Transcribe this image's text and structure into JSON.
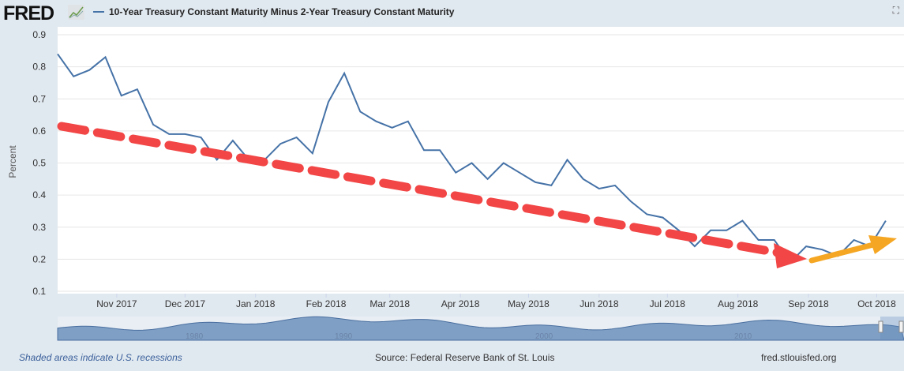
{
  "header": {
    "logo": "FRED",
    "logo_icon": "line-chart-icon",
    "legend_label": "10-Year Treasury Constant Maturity Minus 2-Year Treasury Constant Maturity",
    "expand_icon": "fullscreen-icon"
  },
  "chart_data": {
    "type": "line",
    "title": "",
    "ylabel": "Percent",
    "ylim": [
      0.1,
      0.9
    ],
    "yticks": [
      "0.1",
      "0.2",
      "0.3",
      "0.4",
      "0.5",
      "0.6",
      "0.7",
      "0.8",
      "0.9"
    ],
    "xlim": [
      "2017-10-06",
      "2018-10-13"
    ],
    "xticks": [
      {
        "label": "Nov 2017",
        "date": "2017-11-01"
      },
      {
        "label": "Dec 2017",
        "date": "2017-12-01"
      },
      {
        "label": "Jan 2018",
        "date": "2018-01-01"
      },
      {
        "label": "Feb 2018",
        "date": "2018-02-01"
      },
      {
        "label": "Mar 2018",
        "date": "2018-03-01"
      },
      {
        "label": "Apr 2018",
        "date": "2018-04-01"
      },
      {
        "label": "May 2018",
        "date": "2018-05-01"
      },
      {
        "label": "Jun 2018",
        "date": "2018-06-01"
      },
      {
        "label": "Jul 2018",
        "date": "2018-07-01"
      },
      {
        "label": "Aug 2018",
        "date": "2018-08-01"
      },
      {
        "label": "Sep 2018",
        "date": "2018-09-01"
      },
      {
        "label": "Oct 2018",
        "date": "2018-10-01"
      }
    ],
    "grid": true,
    "series": [
      {
        "name": "10-Year Treasury Constant Maturity Minus 2-Year Treasury Constant Maturity",
        "color": "#4572a7",
        "start": "2017-10-06",
        "frequency": "weekly",
        "values": [
          0.84,
          0.77,
          0.79,
          0.83,
          0.71,
          0.73,
          0.62,
          0.59,
          0.59,
          0.58,
          0.51,
          0.57,
          0.51,
          0.51,
          0.56,
          0.58,
          0.53,
          0.69,
          0.78,
          0.66,
          0.63,
          0.61,
          0.63,
          0.54,
          0.54,
          0.47,
          0.5,
          0.45,
          0.5,
          0.47,
          0.44,
          0.43,
          0.51,
          0.45,
          0.42,
          0.43,
          0.38,
          0.34,
          0.33,
          0.29,
          0.24,
          0.29,
          0.29,
          0.32,
          0.26,
          0.26,
          0.19,
          0.24,
          0.23,
          0.21,
          0.26,
          0.24,
          0.32
        ]
      }
    ],
    "annotations": [
      {
        "type": "dashed-arrow",
        "color": "#f24545",
        "trend": "down"
      },
      {
        "type": "arrow",
        "color": "#f5a623",
        "trend": "up"
      }
    ],
    "navigator": {
      "labels": [
        "1980",
        "1990",
        "2000",
        "2010"
      ],
      "color": "#7f9fc4"
    }
  },
  "footer": {
    "recessions": "Shaded areas indicate U.S. recessions",
    "source": "Source: Federal Reserve Bank of St. Louis",
    "site": "fred.stlouisfed.org"
  }
}
